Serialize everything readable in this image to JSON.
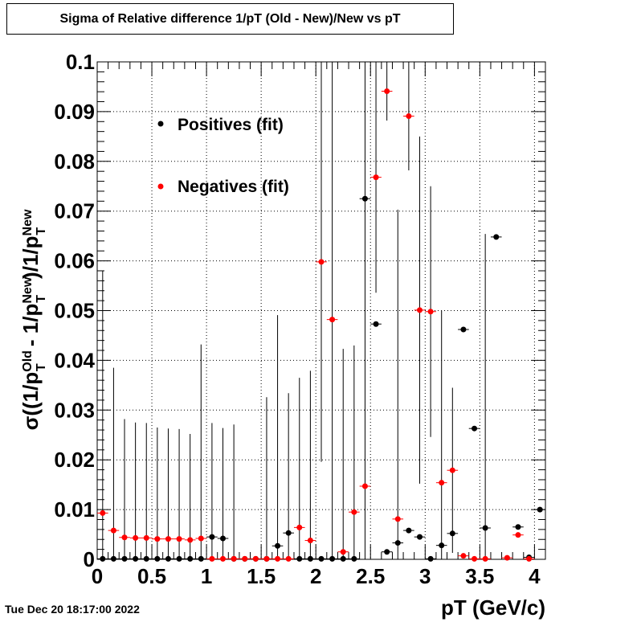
{
  "title": "Sigma of Relative difference 1/pT (Old - New)/New vs pT",
  "timestamp": "Tue Dec 20 18:17:00 2022",
  "chart_data": {
    "type": "scatter",
    "xlabel": "pT (GeV/c)",
    "ylabel": "σ((1/p_T^Old - 1/p_T^New)/1/p_T^New)",
    "xlim": [
      0,
      4.1
    ],
    "ylim": [
      0,
      0.1
    ],
    "grid": true,
    "legend_position": "top-left",
    "x_ticks": [
      {
        "value": 0,
        "label": "0"
      },
      {
        "value": 0.5,
        "label": "0.5"
      },
      {
        "value": 1,
        "label": "1"
      },
      {
        "value": 1.5,
        "label": "1.5"
      },
      {
        "value": 2,
        "label": "2"
      },
      {
        "value": 2.5,
        "label": "2.5"
      },
      {
        "value": 3,
        "label": "3"
      },
      {
        "value": 3.5,
        "label": "3.5"
      },
      {
        "value": 4,
        "label": "4"
      }
    ],
    "y_ticks": [
      {
        "value": 0,
        "label": "0"
      },
      {
        "value": 0.01,
        "label": "0.01"
      },
      {
        "value": 0.02,
        "label": "0.02"
      },
      {
        "value": 0.03,
        "label": "0.03"
      },
      {
        "value": 0.04,
        "label": "0.04"
      },
      {
        "value": 0.05,
        "label": "0.05"
      },
      {
        "value": 0.06,
        "label": "0.06"
      },
      {
        "value": 0.07,
        "label": "0.07"
      },
      {
        "value": 0.08,
        "label": "0.08"
      },
      {
        "value": 0.09,
        "label": "0.09"
      },
      {
        "value": 0.1,
        "label": "0.1"
      }
    ],
    "bin_half_width": 0.05,
    "series": [
      {
        "name": "Positives (fit)",
        "color": "#000000",
        "points": [
          {
            "x": 0.05,
            "y": 0.0001,
            "err": 0.0
          },
          {
            "x": 0.15,
            "y": 0.0001,
            "err": 0.0
          },
          {
            "x": 0.25,
            "y": 0.0001,
            "err": 0.0
          },
          {
            "x": 0.35,
            "y": 0.0001,
            "err": 0.0
          },
          {
            "x": 0.45,
            "y": 0.0001,
            "err": 0.0
          },
          {
            "x": 0.55,
            "y": 0.0001,
            "err": 0.0
          },
          {
            "x": 0.65,
            "y": 0.0001,
            "err": 0.0
          },
          {
            "x": 0.75,
            "y": 0.0001,
            "err": 0.0
          },
          {
            "x": 0.85,
            "y": 0.0001,
            "err": 0.0
          },
          {
            "x": 0.95,
            "y": 0.0001,
            "err": 0.0
          },
          {
            "x": 1.05,
            "y": 0.0045,
            "err": 0.0
          },
          {
            "x": 1.15,
            "y": 0.0042,
            "err": 0.0
          },
          {
            "x": 1.25,
            "y": 0.0001,
            "err": 0.0
          },
          {
            "x": 1.35,
            "y": 0.0001,
            "err": 0.0
          },
          {
            "x": 1.45,
            "y": 0.0001,
            "err": 0.0
          },
          {
            "x": 1.55,
            "y": 0.0001,
            "err": 0.0
          },
          {
            "x": 1.65,
            "y": 0.0027,
            "err": 0.0
          },
          {
            "x": 1.75,
            "y": 0.0053,
            "err": 0.0
          },
          {
            "x": 1.85,
            "y": 0.0001,
            "err": 0.0
          },
          {
            "x": 1.95,
            "y": 0.0001,
            "err": 0.0
          },
          {
            "x": 2.05,
            "y": 0.0001,
            "err": 0.0
          },
          {
            "x": 2.15,
            "y": 0.0001,
            "err": 0.0
          },
          {
            "x": 2.25,
            "y": 0.0001,
            "err": 0.0
          },
          {
            "x": 2.35,
            "y": 0.0001,
            "err": 0.0
          },
          {
            "x": 2.45,
            "y": 0.0725,
            "err": 0.0
          },
          {
            "x": 2.55,
            "y": 0.0473,
            "err": 0.0
          },
          {
            "x": 2.65,
            "y": 0.0015,
            "err": 0.0
          },
          {
            "x": 2.75,
            "y": 0.0033,
            "err": 0.0
          },
          {
            "x": 2.85,
            "y": 0.0058,
            "err": 0.0
          },
          {
            "x": 2.95,
            "y": 0.0045,
            "err": 0.0
          },
          {
            "x": 3.05,
            "y": 0.0001,
            "err": 0.0
          },
          {
            "x": 3.15,
            "y": 0.0028,
            "err": 0.0
          },
          {
            "x": 3.25,
            "y": 0.0052,
            "err": 0.0
          },
          {
            "x": 3.35,
            "y": 0.0462,
            "err": 0.0
          },
          {
            "x": 3.45,
            "y": 0.0263,
            "err": 0.0
          },
          {
            "x": 3.55,
            "y": 0.0063,
            "err": 0.0
          },
          {
            "x": 3.65,
            "y": 0.0648,
            "err": 0.0
          },
          {
            "x": 3.85,
            "y": 0.0065,
            "err": 0.0
          },
          {
            "x": 3.95,
            "y": 0.0004,
            "err": 0.0
          },
          {
            "x": 4.05,
            "y": 0.01,
            "err": 0.0
          }
        ]
      },
      {
        "name": "Negatives (fit)",
        "color": "#ff0000",
        "points": [
          {
            "x": 0.05,
            "y": 0.0093,
            "err": 0.0487
          },
          {
            "x": 0.15,
            "y": 0.0058,
            "err": 0.0327
          },
          {
            "x": 0.25,
            "y": 0.0044,
            "err": 0.0238
          },
          {
            "x": 0.35,
            "y": 0.0043,
            "err": 0.0232
          },
          {
            "x": 0.45,
            "y": 0.0043,
            "err": 0.0231
          },
          {
            "x": 0.55,
            "y": 0.0041,
            "err": 0.0224
          },
          {
            "x": 0.65,
            "y": 0.0041,
            "err": 0.0222
          },
          {
            "x": 0.75,
            "y": 0.0041,
            "err": 0.0221
          },
          {
            "x": 0.85,
            "y": 0.0039,
            "err": 0.0213
          },
          {
            "x": 0.95,
            "y": 0.0042,
            "err": 0.039
          },
          {
            "x": 1.05,
            "y": 0.0001,
            "err": 0.0273
          },
          {
            "x": 1.15,
            "y": 0.0001,
            "err": 0.0263
          },
          {
            "x": 1.25,
            "y": 0.0001,
            "err": 0.027
          },
          {
            "x": 1.35,
            "y": 0.0001,
            "err": 0.0
          },
          {
            "x": 1.45,
            "y": 0.0001,
            "err": 0.0
          },
          {
            "x": 1.55,
            "y": 0.0001,
            "err": 0.0325
          },
          {
            "x": 1.65,
            "y": 0.0001,
            "err": 0.049
          },
          {
            "x": 1.75,
            "y": 0.0001,
            "err": 0.0333
          },
          {
            "x": 1.85,
            "y": 0.0064,
            "err": 0.0301
          },
          {
            "x": 1.95,
            "y": 0.0038,
            "err": 0.0341
          },
          {
            "x": 2.05,
            "y": 0.0598,
            "err": 0.0402
          },
          {
            "x": 2.15,
            "y": 0.0482,
            "err": 0.0518
          },
          {
            "x": 2.25,
            "y": 0.0015,
            "err": 0.0408
          },
          {
            "x": 2.35,
            "y": 0.0095,
            "err": 0.0335
          },
          {
            "x": 2.45,
            "y": 0.0147,
            "err": 0.0853
          },
          {
            "x": 2.55,
            "y": 0.0768,
            "err": 0.0232
          },
          {
            "x": 2.65,
            "y": 0.0941,
            "err": 0.0059
          },
          {
            "x": 2.75,
            "y": 0.0081,
            "err": 0.0622
          },
          {
            "x": 2.85,
            "y": 0.0891,
            "err": 0.0109
          },
          {
            "x": 2.95,
            "y": 0.0501,
            "err": 0.0349
          },
          {
            "x": 3.05,
            "y": 0.0498,
            "err": 0.0252
          },
          {
            "x": 3.15,
            "y": 0.0154,
            "err": 0.0346
          },
          {
            "x": 3.25,
            "y": 0.0179,
            "err": 0.0166
          },
          {
            "x": 3.35,
            "y": 0.0007,
            "err": 0.0
          },
          {
            "x": 3.45,
            "y": 0.0001,
            "err": 0.0
          },
          {
            "x": 3.55,
            "y": 0.0001,
            "err": 0.0653
          },
          {
            "x": 3.75,
            "y": 0.0003,
            "err": 0.0
          },
          {
            "x": 3.85,
            "y": 0.0049,
            "err": 0.0
          },
          {
            "x": 3.95,
            "y": 0.0001,
            "err": 0.0
          }
        ]
      }
    ]
  }
}
